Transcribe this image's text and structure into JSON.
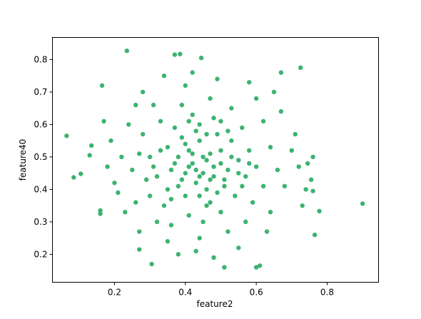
{
  "chart_data": {
    "type": "scatter",
    "xlabel": "feature2",
    "ylabel": "feature40",
    "color": "#3cb371",
    "xlim": [
      0.025,
      0.945
    ],
    "ylim": [
      0.114,
      0.868
    ],
    "xticks": [
      0.2,
      0.4,
      0.6,
      0.8
    ],
    "yticks": [
      0.2,
      0.3,
      0.4,
      0.5,
      0.6,
      0.7,
      0.8
    ],
    "grid": false,
    "x": [
      0.42,
      0.45,
      0.4,
      0.47,
      0.5,
      0.44,
      0.38,
      0.52,
      0.46,
      0.41,
      0.48,
      0.43,
      0.36,
      0.55,
      0.39,
      0.51,
      0.44,
      0.49,
      0.35,
      0.57,
      0.33,
      0.53,
      0.4,
      0.46,
      0.58,
      0.37,
      0.31,
      0.54,
      0.42,
      0.48,
      0.29,
      0.6,
      0.34,
      0.56,
      0.45,
      0.39,
      0.62,
      0.27,
      0.5,
      0.33,
      0.64,
      0.3,
      0.41,
      0.53,
      0.25,
      0.59,
      0.36,
      0.47,
      0.66,
      0.28,
      0.22,
      0.68,
      0.31,
      0.57,
      0.44,
      0.4,
      0.62,
      0.26,
      0.52,
      0.7,
      0.24,
      0.35,
      0.6,
      0.2,
      0.72,
      0.49,
      0.32,
      0.64,
      0.23,
      0.67,
      0.19,
      0.74,
      0.38,
      0.55,
      0.28,
      0.58,
      0.21,
      0.71,
      0.43,
      0.34,
      0.18,
      0.76,
      0.27,
      0.63,
      0.26,
      0.65,
      0.48,
      0.42,
      0.17,
      0.73,
      0.43,
      0.46,
      0.41,
      0.44,
      0.47,
      0.39,
      0.5,
      0.45,
      0.42,
      0.48,
      0.37,
      0.53,
      0.4,
      0.51,
      0.44,
      0.46,
      0.35,
      0.55,
      0.38,
      0.49,
      0.32,
      0.58,
      0.43,
      0.52,
      0.36,
      0.47,
      0.3,
      0.56,
      0.41,
      0.5,
      0.065,
      0.085,
      0.105,
      0.13,
      0.135,
      0.165,
      0.235,
      0.9,
      0.778,
      0.765,
      0.725,
      0.6,
      0.61,
      0.305,
      0.51,
      0.37,
      0.385,
      0.445,
      0.67,
      0.755,
      0.745,
      0.76,
      0.16,
      0.16,
      0.27
    ],
    "values": [
      0.48,
      0.5,
      0.45,
      0.43,
      0.52,
      0.55,
      0.5,
      0.46,
      0.4,
      0.52,
      0.47,
      0.42,
      0.46,
      0.49,
      0.56,
      0.41,
      0.6,
      0.57,
      0.4,
      0.44,
      0.52,
      0.55,
      0.38,
      0.35,
      0.52,
      0.59,
      0.47,
      0.38,
      0.63,
      0.62,
      0.43,
      0.47,
      0.35,
      0.59,
      0.3,
      0.66,
      0.41,
      0.51,
      0.33,
      0.61,
      0.53,
      0.38,
      0.32,
      0.65,
      0.46,
      0.36,
      0.29,
      0.68,
      0.46,
      0.57,
      0.5,
      0.41,
      0.66,
      0.3,
      0.25,
      0.72,
      0.61,
      0.36,
      0.27,
      0.52,
      0.6,
      0.24,
      0.68,
      0.42,
      0.47,
      0.74,
      0.3,
      0.33,
      0.33,
      0.64,
      0.55,
      0.4,
      0.2,
      0.22,
      0.7,
      0.73,
      0.39,
      0.57,
      0.21,
      0.75,
      0.47,
      0.5,
      0.27,
      0.27,
      0.66,
      0.7,
      0.19,
      0.76,
      0.61,
      0.35,
      0.46,
      0.49,
      0.47,
      0.44,
      0.51,
      0.43,
      0.48,
      0.45,
      0.51,
      0.44,
      0.48,
      0.5,
      0.54,
      0.43,
      0.38,
      0.57,
      0.53,
      0.45,
      0.41,
      0.39,
      0.44,
      0.48,
      0.58,
      0.58,
      0.37,
      0.36,
      0.5,
      0.41,
      0.61,
      0.61,
      0.565,
      0.437,
      0.448,
      0.505,
      0.535,
      0.72,
      0.827,
      0.356,
      0.333,
      0.26,
      0.775,
      0.16,
      0.165,
      0.17,
      0.16,
      0.815,
      0.817,
      0.805,
      0.76,
      0.43,
      0.48,
      0.395,
      0.335,
      0.325,
      0.215
    ]
  }
}
